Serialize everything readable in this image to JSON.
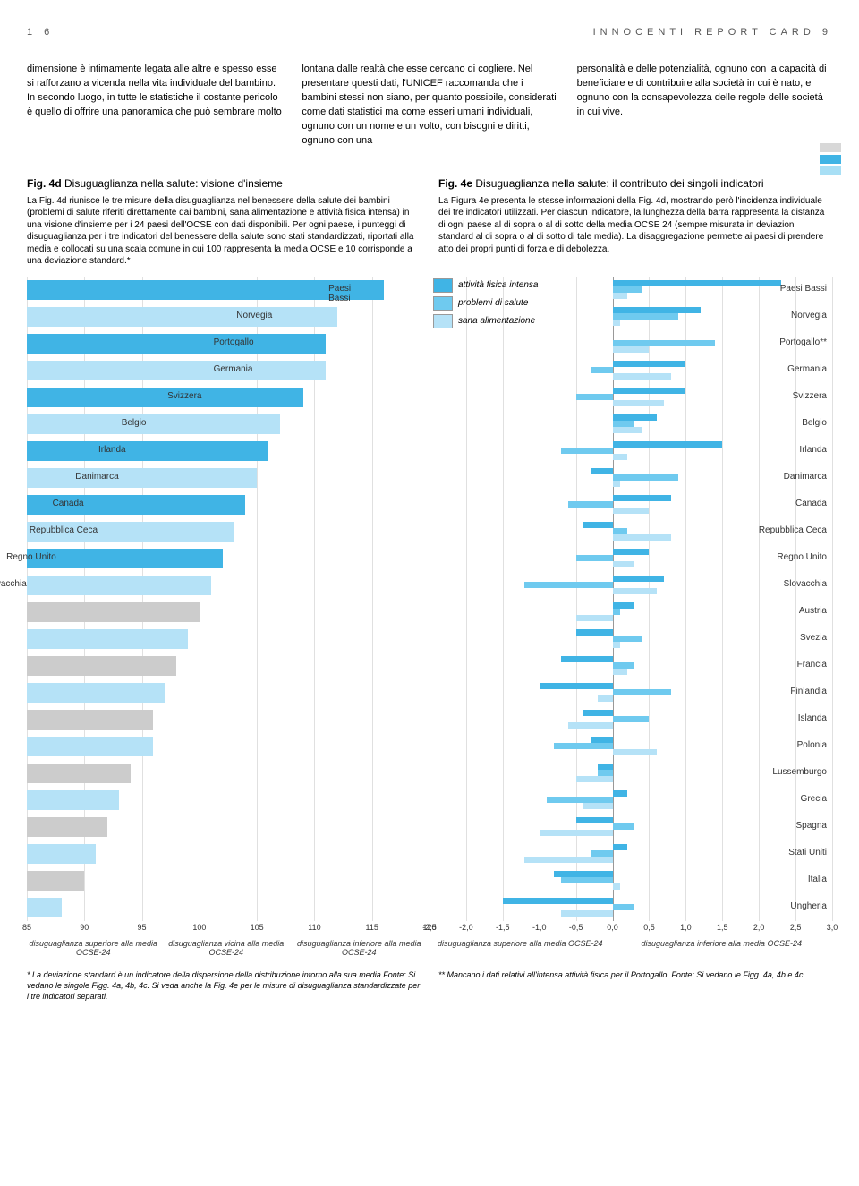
{
  "header": {
    "page_num": "1 6",
    "title": "INNOCENTI REPORT CARD 9"
  },
  "col1": "dimensione è intimamente legata alle altre e spesso esse si rafforzano a vicenda nella vita individuale del bambino.\n\nIn secondo luogo, in tutte le statistiche il costante pericolo è quello di offrire una panoramica che può sembrare molto",
  "col2": "lontana dalle realtà che esse cercano di cogliere. Nel presentare questi dati, l'UNICEF raccomanda che i bambini stessi non siano, per quanto possibile, considerati come dati statistici ma come esseri umani individuali, ognuno con un nome e un volto, con bisogni e diritti, ognuno con una",
  "col3": "personalità e delle potenzialità, ognuno con la capacità di beneficiare e di contribuire alla società in cui è nato, e ognuno con la consapevolezza delle regole delle società in cui vive.",
  "deco_colors": [
    "#d8d8d8",
    "#40b4e5",
    "#a8dff5"
  ],
  "fig4d": {
    "label": "Fig. 4d",
    "title": "Disuguaglianza nella salute: visione d'insieme",
    "desc": "La Fig. 4d riunisce le tre misure della disuguaglianza nel benessere della salute dei bambini (problemi di salute riferiti direttamente dai bambini, sana alimentazione e attività fisica intensa) in una visione d'insieme per i 24 paesi dell'OCSE con dati disponibili. Per ogni paese, i punteggi di disuguaglianza per i tre indicatori del benessere della salute sono stati standardizzati, riportati alla media e collocati su una scala comune in cui 100 rappresenta la media OCSE e 10 corrisponde a una deviazione standard.*"
  },
  "fig4e": {
    "label": "Fig. 4e",
    "title": "Disuguaglianza nella salute: il contributo dei singoli indicatori",
    "desc": "La Figura 4e presenta le stesse informazioni della Fig. 4d, mostrando però l'incidenza individuale dei tre indicatori utilizzati. Per ciascun indicatore, la lunghezza della barra rappresenta la distanza di ogni paese al di sopra o al di sotto della media OCSE 24 (sempre misurata in deviazioni standard al di sopra o al di sotto di tale media). La disaggregazione permette ai paesi di prendere atto dei propri punti di forza e di debolezza."
  },
  "colors": {
    "light": "#b5e2f7",
    "mid": "#6fcaef",
    "dark": "#40b4e5",
    "grey": "#cccccc"
  },
  "countries": [
    "Paesi Bassi",
    "Norvegia",
    "Portogallo",
    "Germania",
    "Svizzera",
    "Belgio",
    "Irlanda",
    "Danimarca",
    "Canada",
    "Repubblica Ceca",
    "Regno Unito",
    "Slovacchia",
    "Austria",
    "Svezia",
    "Francia",
    "Finlandia",
    "Islanda",
    "Polonia",
    "Lussemburgo",
    "Grecia",
    "Spagna",
    "Stati Uniti",
    "Italia",
    "Ungheria"
  ],
  "chart_4d": {
    "xmin": 85,
    "xmax": 120,
    "ticks": [
      85,
      90,
      95,
      100,
      105,
      110,
      115,
      120
    ],
    "values": [
      116,
      112,
      111,
      111,
      109,
      107,
      106,
      105,
      104,
      103,
      102,
      101,
      100,
      99,
      98,
      97,
      96,
      96,
      94,
      93,
      92,
      91,
      90,
      88
    ],
    "colors_idx": [
      2,
      1,
      2,
      1,
      2,
      1,
      2,
      1,
      2,
      1,
      2,
      1,
      0,
      1,
      0,
      1,
      0,
      1,
      0,
      1,
      0,
      1,
      0,
      1
    ],
    "xlabels": [
      {
        "t": "disuguaglianza superiore alla media OCSE-24",
        "w": 33
      },
      {
        "t": "disuguaglianza vicina alla media OCSE-24",
        "w": 33
      },
      {
        "t": "disuguaglianza inferiore alla media OCSE-24",
        "w": 33
      }
    ]
  },
  "chart_4e": {
    "xmin": -2.5,
    "xmax": 3.0,
    "zero": 0.0,
    "ticks": [
      -2.5,
      -2.0,
      -1.5,
      -1.0,
      -0.5,
      0.0,
      0.5,
      1.0,
      1.5,
      2.0,
      2.5,
      3.0
    ],
    "country_suffix": [
      "",
      "",
      "**",
      "",
      "",
      "",
      "",
      "",
      "",
      "",
      "",
      "",
      "",
      "",
      "",
      "",
      "",
      "",
      "",
      "",
      "",
      "",
      "",
      ""
    ],
    "legend": [
      {
        "label": "attività fisica intensa",
        "c": "dark"
      },
      {
        "label": "problemi di salute",
        "c": "mid"
      },
      {
        "label": "sana alimentazione",
        "c": "light"
      }
    ],
    "data": [
      {
        "af": [
          0,
          2.3
        ],
        "ps": [
          0,
          0.4
        ],
        "sa": [
          0,
          0.2
        ]
      },
      {
        "af": [
          0,
          1.2
        ],
        "ps": [
          0,
          0.9
        ],
        "sa": [
          0,
          0.1
        ]
      },
      {
        "af": [
          0,
          0
        ],
        "ps": [
          0,
          1.4
        ],
        "sa": [
          0,
          0.5
        ]
      },
      {
        "af": [
          0,
          1.0
        ],
        "ps": [
          -0.3,
          0
        ],
        "sa": [
          0,
          0.8
        ]
      },
      {
        "af": [
          0,
          1.0
        ],
        "ps": [
          -0.5,
          0
        ],
        "sa": [
          0,
          0.7
        ]
      },
      {
        "af": [
          0,
          0.6
        ],
        "ps": [
          0,
          0.3
        ],
        "sa": [
          0,
          0.4
        ]
      },
      {
        "af": [
          0,
          1.5
        ],
        "ps": [
          -0.7,
          0
        ],
        "sa": [
          0,
          0.2
        ]
      },
      {
        "af": [
          -0.3,
          0
        ],
        "ps": [
          0,
          0.9
        ],
        "sa": [
          0,
          0.1
        ]
      },
      {
        "af": [
          0,
          0.8
        ],
        "ps": [
          -0.6,
          0
        ],
        "sa": [
          0,
          0.5
        ]
      },
      {
        "af": [
          -0.4,
          0
        ],
        "ps": [
          0,
          0.2
        ],
        "sa": [
          0,
          0.8
        ]
      },
      {
        "af": [
          0,
          0.5
        ],
        "ps": [
          -0.5,
          0
        ],
        "sa": [
          0,
          0.3
        ]
      },
      {
        "af": [
          0,
          0.7
        ],
        "ps": [
          -1.2,
          0
        ],
        "sa": [
          0,
          0.6
        ]
      },
      {
        "af": [
          0,
          0.3
        ],
        "ps": [
          0,
          0.1
        ],
        "sa": [
          -0.5,
          0
        ]
      },
      {
        "af": [
          -0.5,
          0
        ],
        "ps": [
          0,
          0.4
        ],
        "sa": [
          0,
          0.1
        ]
      },
      {
        "af": [
          -0.7,
          0
        ],
        "ps": [
          0,
          0.3
        ],
        "sa": [
          0,
          0.2
        ]
      },
      {
        "af": [
          -1.0,
          0
        ],
        "ps": [
          0,
          0.8
        ],
        "sa": [
          -0.2,
          0
        ]
      },
      {
        "af": [
          -0.4,
          0
        ],
        "ps": [
          0,
          0.5
        ],
        "sa": [
          -0.6,
          0
        ]
      },
      {
        "af": [
          -0.3,
          0
        ],
        "ps": [
          -0.8,
          0
        ],
        "sa": [
          0,
          0.6
        ]
      },
      {
        "af": [
          -0.2,
          0
        ],
        "ps": [
          -0.2,
          0
        ],
        "sa": [
          -0.5,
          0
        ]
      },
      {
        "af": [
          0,
          0.2
        ],
        "ps": [
          -0.9,
          0
        ],
        "sa": [
          -0.4,
          0
        ]
      },
      {
        "af": [
          -0.5,
          0
        ],
        "ps": [
          0,
          0.3
        ],
        "sa": [
          -1.0,
          0
        ]
      },
      {
        "af": [
          0,
          0.2
        ],
        "ps": [
          -0.3,
          0
        ],
        "sa": [
          -1.2,
          0
        ]
      },
      {
        "af": [
          -0.8,
          0
        ],
        "ps": [
          -0.7,
          0
        ],
        "sa": [
          0,
          0.1
        ]
      },
      {
        "af": [
          -1.5,
          0
        ],
        "ps": [
          0,
          0.3
        ],
        "sa": [
          -0.7,
          0
        ]
      }
    ],
    "xlabels": [
      {
        "t": "disuguaglianza superiore alla media OCSE-24",
        "w": 45
      },
      {
        "t": "disuguaglianza inferiore alla media OCSE-24",
        "w": 55
      }
    ]
  },
  "footnote_left": "* La deviazione standard è un indicatore della dispersione della distribuzione intorno alla sua media\nFonte: Si vedano le singole Figg. 4a, 4b, 4c. Si veda anche la Fig. 4e per le misure di disuguaglianza standardizzate per i tre indicatori separati.",
  "footnote_right": "** Mancano i dati relativi all'intensa attività fisica per il Portogallo.\nFonte: Si vedano le Figg. 4a, 4b e 4c."
}
